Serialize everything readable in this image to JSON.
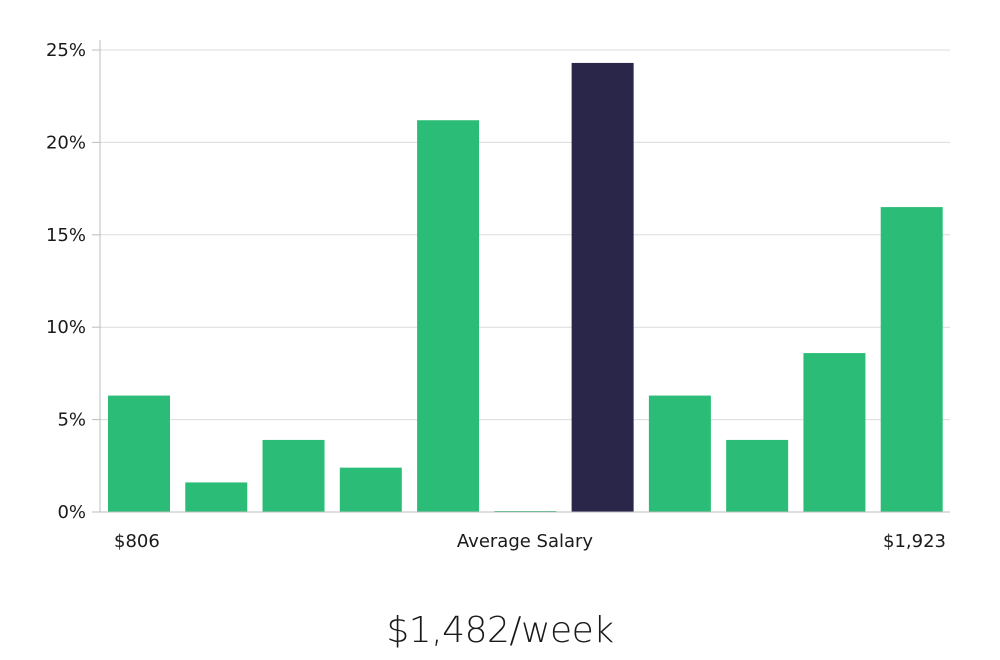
{
  "chart_data": {
    "type": "bar",
    "values": [
      6.3,
      1.6,
      3.9,
      2.4,
      21.2,
      0.05,
      24.3,
      6.3,
      3.9,
      8.6,
      16.5
    ],
    "highlight_index": 6,
    "ylim": [
      0,
      25
    ],
    "y_ticks": [
      0,
      5,
      10,
      15,
      20,
      25
    ],
    "y_tick_labels": [
      "0%",
      "5%",
      "10%",
      "15%",
      "20%",
      "25%"
    ],
    "x_labels": {
      "left": "$806",
      "center": "Average Salary",
      "right": "$1,923"
    },
    "grid": true,
    "colors": {
      "bar": "#2bbd77",
      "highlight": "#29264a",
      "grid": "#dcdcdc",
      "axis": "#bdbdbd"
    }
  },
  "summary": {
    "value": "$1,482/week"
  }
}
